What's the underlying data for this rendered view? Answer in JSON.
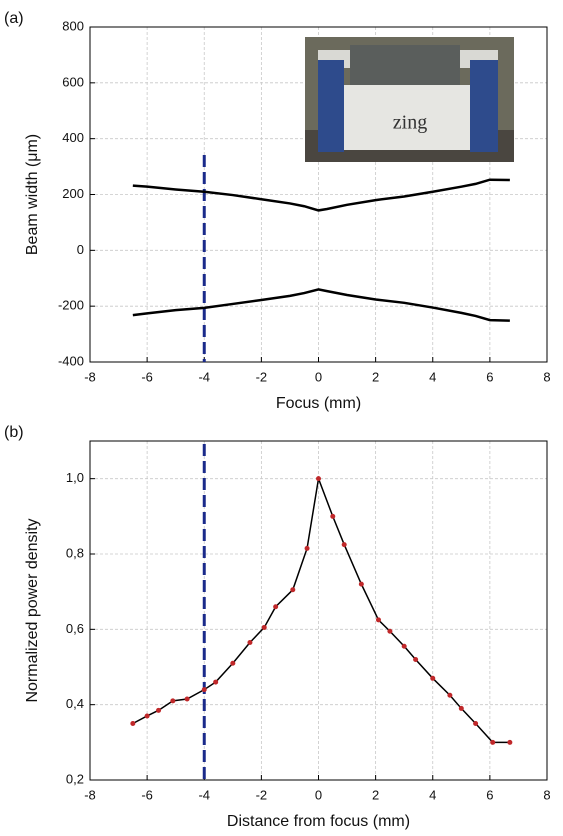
{
  "chart_data": [
    {
      "type": "line",
      "panel_label": "(a)",
      "xlabel": "Focus (mm)",
      "ylabel": "Beam width (μm)",
      "xlim": [
        -8,
        8
      ],
      "xticks": [
        -8,
        -6,
        -4,
        -2,
        0,
        2,
        4,
        6,
        8
      ],
      "ylim": [
        -400,
        800
      ],
      "yticks": [
        -400,
        -200,
        0,
        200,
        400,
        600,
        800
      ],
      "grid": true,
      "reference_x": -4,
      "reference_color": "#1a2a8a",
      "inset_text": "zing",
      "x": [
        -6.5,
        -6,
        -5,
        -4,
        -3,
        -2,
        -1,
        -0.5,
        0,
        0.3,
        1,
        2,
        3,
        4,
        5,
        5.5,
        6,
        6.7
      ],
      "series": [
        {
          "color": "#000000",
          "values": [
            232,
            228,
            218,
            210,
            198,
            183,
            168,
            158,
            143,
            148,
            163,
            180,
            193,
            210,
            228,
            238,
            253,
            252
          ]
        },
        {
          "color": "#000000",
          "values": [
            -232,
            -226,
            -214,
            -206,
            -192,
            -178,
            -163,
            -153,
            -140,
            -146,
            -160,
            -176,
            -188,
            -205,
            -224,
            -235,
            -250,
            -252
          ]
        }
      ]
    },
    {
      "type": "line",
      "panel_label": "(b)",
      "xlabel": "Distance from focus (mm)",
      "ylabel": "Normalized power density",
      "xlim": [
        -8,
        8
      ],
      "xticks": [
        -8,
        -6,
        -4,
        -2,
        0,
        2,
        4,
        6,
        8
      ],
      "ylim": [
        0.2,
        1.1
      ],
      "yticks": [
        {
          "value": 0.2,
          "label": "0,2"
        },
        {
          "value": 0.4,
          "label": "0,4"
        },
        {
          "value": 0.6,
          "label": "0,6"
        },
        {
          "value": 0.8,
          "label": "0,8"
        },
        {
          "value": 1.0,
          "label": "1,0"
        }
      ],
      "grid": true,
      "reference_x": -4,
      "reference_color": "#1a2a8a",
      "marker_color": "#c0282a",
      "x": [
        -6.5,
        -6,
        -5.6,
        -5.1,
        -4.6,
        -4,
        -3.6,
        -3,
        -2.4,
        -1.9,
        -1.5,
        -0.9,
        -0.4,
        0,
        0.5,
        0.9,
        1.5,
        2.1,
        2.5,
        3.0,
        3.4,
        4.0,
        4.6,
        5.0,
        5.5,
        6.1,
        6.7
      ],
      "series": [
        {
          "color": "#000000",
          "values": [
            0.35,
            0.37,
            0.385,
            0.41,
            0.415,
            0.44,
            0.46,
            0.51,
            0.565,
            0.605,
            0.66,
            0.705,
            0.815,
            1.0,
            0.9,
            0.825,
            0.72,
            0.625,
            0.595,
            0.555,
            0.52,
            0.47,
            0.425,
            0.39,
            0.35,
            0.3,
            0.3
          ]
        }
      ]
    }
  ]
}
